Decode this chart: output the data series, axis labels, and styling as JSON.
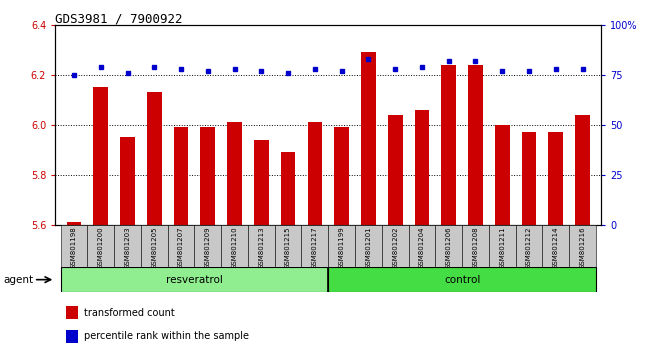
{
  "title": "GDS3981 / 7900922",
  "samples": [
    "GSM801198",
    "GSM801200",
    "GSM801203",
    "GSM801205",
    "GSM801207",
    "GSM801209",
    "GSM801210",
    "GSM801213",
    "GSM801215",
    "GSM801217",
    "GSM801199",
    "GSM801201",
    "GSM801202",
    "GSM801204",
    "GSM801206",
    "GSM801208",
    "GSM801211",
    "GSM801212",
    "GSM801214",
    "GSM801216"
  ],
  "bar_values": [
    5.61,
    6.15,
    5.95,
    6.13,
    5.99,
    5.99,
    6.01,
    5.94,
    5.89,
    6.01,
    5.99,
    6.29,
    6.04,
    6.06,
    6.24,
    6.24,
    6.0,
    5.97,
    5.97,
    6.04
  ],
  "percentile_values": [
    75,
    79,
    76,
    79,
    78,
    77,
    78,
    77,
    76,
    78,
    77,
    83,
    78,
    79,
    82,
    82,
    77,
    77,
    78,
    78
  ],
  "groups": [
    {
      "label": "resveratrol",
      "start": 0,
      "end": 10,
      "color": "#90EE90"
    },
    {
      "label": "control",
      "start": 10,
      "end": 20,
      "color": "#44DD44"
    }
  ],
  "group_label": "agent",
  "ylim": [
    5.6,
    6.4
  ],
  "y2lim": [
    0,
    100
  ],
  "yticks": [
    5.6,
    5.8,
    6.0,
    6.2,
    6.4
  ],
  "y2ticks": [
    0,
    25,
    50,
    75,
    100
  ],
  "y2ticklabels": [
    "0",
    "25",
    "50",
    "75",
    "100%"
  ],
  "bar_color": "#CC0000",
  "dot_color": "#0000CC",
  "bar_width": 0.55,
  "legend_items": [
    {
      "color": "#CC0000",
      "label": "transformed count"
    },
    {
      "color": "#0000CC",
      "label": "percentile rank within the sample"
    }
  ],
  "background_color": "#FFFFFF",
  "plot_bg": "#FFFFFF",
  "left_tick_color": "#CC0000",
  "right_tick_color": "#0000CC",
  "title_fontsize": 9,
  "tick_fontsize": 7,
  "label_fontsize": 7
}
